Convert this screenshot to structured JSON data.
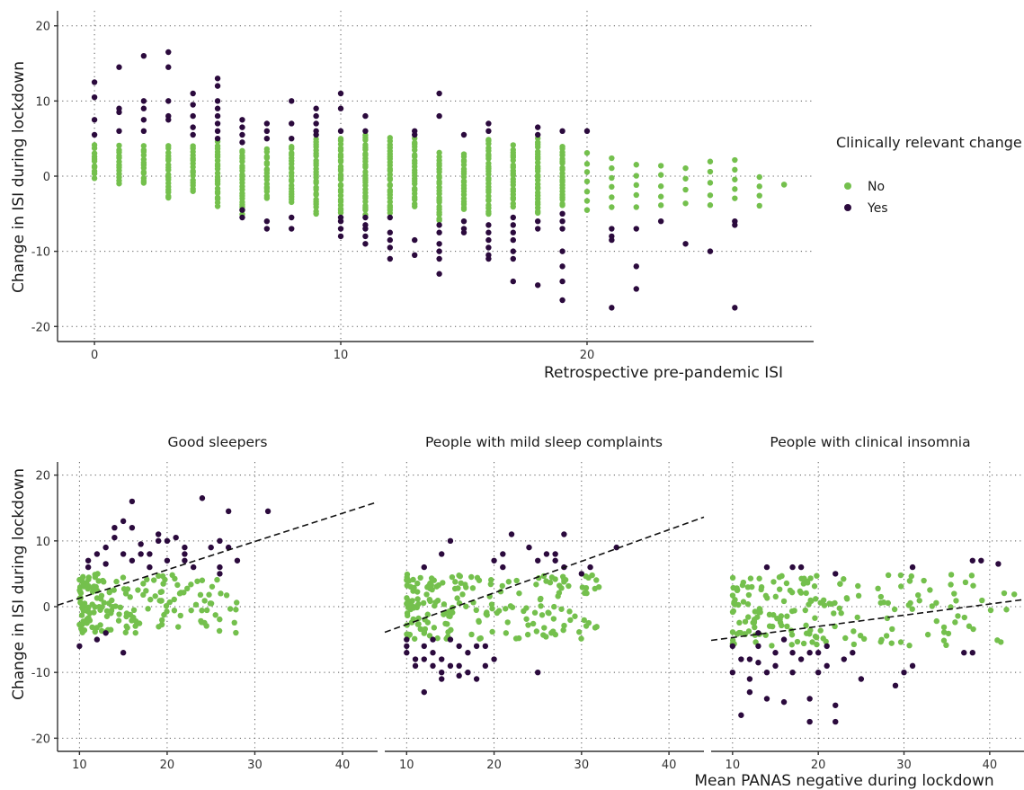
{
  "colors": {
    "no": "#74c04d",
    "yes": "#2b0a3d"
  },
  "legend": {
    "title": "Clinically relevant change",
    "items": [
      {
        "label": "No",
        "key": "no"
      },
      {
        "label": "Yes",
        "key": "yes"
      }
    ]
  },
  "chart_data": [
    {
      "type": "scatter",
      "xlabel": "Retrospective pre-pandemic ISI",
      "ylabel": "Change in ISI during lockdown",
      "xlim": [
        -1.5,
        29.2
      ],
      "ylim": [
        -22,
        22
      ],
      "xticks": [
        0,
        10,
        20
      ],
      "yticks": [
        -20,
        -10,
        0,
        10,
        20
      ],
      "grid": true,
      "columns": [
        {
          "x": 0,
          "no": [
            -0.2,
            4
          ],
          "yes": [
            12.5,
            10.5,
            7.5,
            5.5
          ]
        },
        {
          "x": 1,
          "no": [
            -1,
            4
          ],
          "yes": [
            14.5,
            9,
            8.5,
            6
          ]
        },
        {
          "x": 2,
          "no": [
            -1,
            4
          ],
          "yes": [
            16,
            10,
            9,
            7.5,
            6
          ]
        },
        {
          "x": 3,
          "no": [
            -3,
            4
          ],
          "yes": [
            16.5,
            14.5,
            10,
            8,
            7.5
          ]
        },
        {
          "x": 4,
          "no": [
            -2,
            4
          ],
          "yes": [
            11,
            9.5,
            8,
            6.5,
            5.5
          ]
        },
        {
          "x": 5,
          "no": [
            -4,
            4.5
          ],
          "yes": [
            13,
            12,
            10,
            9,
            8,
            7,
            6,
            5
          ]
        },
        {
          "x": 6,
          "no": [
            -5,
            3.5
          ],
          "yes": [
            7.5,
            6.5,
            5.5,
            4.5,
            -5.5,
            -4.5
          ]
        },
        {
          "x": 7,
          "no": [
            -3,
            3.5
          ],
          "yes": [
            7,
            6,
            5,
            -6,
            -7
          ]
        },
        {
          "x": 8,
          "no": [
            -3.5,
            4
          ],
          "yes": [
            10,
            7,
            5,
            -5.5,
            -7
          ]
        },
        {
          "x": 9,
          "no": [
            -5,
            5
          ],
          "yes": [
            9,
            8,
            7,
            6,
            5.5
          ]
        },
        {
          "x": 10,
          "no": [
            -5,
            5
          ],
          "yes": [
            11,
            9,
            6,
            -5.5,
            -6,
            -7,
            -8
          ]
        },
        {
          "x": 11,
          "no": [
            -5,
            5.5
          ],
          "yes": [
            8,
            6,
            -5.5,
            -6.5,
            -7,
            -8,
            -9
          ]
        },
        {
          "x": 12,
          "no": [
            -5,
            5
          ],
          "yes": [
            -5.5,
            -7.5,
            -8.5,
            -9.5,
            -11
          ]
        },
        {
          "x": 13,
          "no": [
            -4,
            5
          ],
          "yes": [
            6,
            5.5,
            -8.5,
            -10.5
          ]
        },
        {
          "x": 14,
          "no": [
            -6,
            3
          ],
          "yes": [
            11,
            8,
            -6.5,
            -7.5,
            -9,
            -10,
            -11,
            -13
          ]
        },
        {
          "x": 15,
          "no": [
            -4.5,
            3
          ],
          "yes": [
            5.5,
            -6,
            -7,
            -7.5
          ]
        },
        {
          "x": 16,
          "no": [
            -5,
            5
          ],
          "yes": [
            7,
            6,
            -6.5,
            -7.5,
            -8.5,
            -9.5,
            -10.5,
            -11
          ]
        },
        {
          "x": 17,
          "no": [
            -4,
            4
          ],
          "yes": [
            -5.5,
            -6.5,
            -7.5,
            -8.5,
            -10,
            -11,
            -14
          ]
        },
        {
          "x": 18,
          "no": [
            -5,
            5
          ],
          "yes": [
            6.5,
            5.5,
            -6,
            -7,
            -14.5
          ]
        },
        {
          "x": 19,
          "no": [
            -4,
            4
          ],
          "yes": [
            6,
            -5,
            -6,
            -7,
            -10,
            -12,
            -14,
            -16.5
          ]
        },
        {
          "x": 20,
          "no": [
            -4.5,
            3
          ],
          "yes": [
            6
          ]
        },
        {
          "x": 21,
          "no": [
            -4,
            2.5
          ],
          "yes": [
            -7,
            -8,
            -8.5,
            -17.5
          ]
        },
        {
          "x": 22,
          "no": [
            -4,
            1.5
          ],
          "yes": [
            -7,
            -12,
            -15
          ]
        },
        {
          "x": 23,
          "no": [
            -4,
            1.5
          ],
          "yes": [
            -6
          ]
        },
        {
          "x": 24,
          "no": [
            -3.5,
            1.2
          ],
          "yes": [
            -9
          ]
        },
        {
          "x": 25,
          "no": [
            -4,
            2
          ],
          "yes": [
            -10
          ]
        },
        {
          "x": 26,
          "no": [
            -3,
            2
          ],
          "yes": [
            -6,
            -6.5,
            -17.5
          ]
        },
        {
          "x": 27,
          "no": [
            -4,
            0
          ],
          "yes": []
        },
        {
          "x": 28,
          "no": [
            -1,
            -1
          ],
          "yes": []
        }
      ]
    },
    {
      "type": "scatter",
      "title": "Good sleepers",
      "ylabel": "Change in ISI during lockdown",
      "xlim": [
        7.5,
        44
      ],
      "ylim": [
        -22,
        22
      ],
      "xticks": [
        10,
        20,
        30,
        40
      ],
      "yticks": [
        -20,
        -10,
        0,
        10,
        20
      ],
      "grid": true,
      "trend": {
        "intercept": -3.0,
        "slope": 0.43
      },
      "no_cloud": {
        "xmin": 10,
        "xmax": 28,
        "ymin": -4,
        "ymax": 5,
        "n": 170
      },
      "yes_points": [
        [
          10,
          -6
        ],
        [
          11,
          7
        ],
        [
          11,
          6
        ],
        [
          12,
          8
        ],
        [
          13,
          6.5
        ],
        [
          13,
          9
        ],
        [
          14,
          10.5
        ],
        [
          14,
          12
        ],
        [
          15,
          13
        ],
        [
          15,
          8
        ],
        [
          16,
          16
        ],
        [
          16,
          12
        ],
        [
          16,
          7
        ],
        [
          17,
          8
        ],
        [
          17,
          9.5
        ],
        [
          18,
          8
        ],
        [
          19,
          10
        ],
        [
          19,
          11
        ],
        [
          20,
          10
        ],
        [
          20,
          7
        ],
        [
          21,
          10.5
        ],
        [
          22,
          9
        ],
        [
          22,
          7
        ],
        [
          23,
          6
        ],
        [
          24,
          16.5
        ],
        [
          25,
          9
        ],
        [
          26,
          10
        ],
        [
          26,
          6
        ],
        [
          27,
          14.5
        ],
        [
          27,
          9
        ],
        [
          28,
          7
        ],
        [
          31.5,
          14.5
        ],
        [
          15,
          -7
        ],
        [
          12,
          -5
        ],
        [
          13,
          -4
        ],
        [
          18,
          6
        ],
        [
          22,
          8
        ],
        [
          26,
          5
        ]
      ]
    },
    {
      "type": "scatter",
      "title": "People with mild sleep complaints",
      "xlim": [
        7.5,
        44
      ],
      "ylim": [
        -22,
        22
      ],
      "xticks": [
        10,
        20,
        30,
        40
      ],
      "yticks": [
        -20,
        -10,
        0,
        10,
        20
      ],
      "grid": true,
      "trend": {
        "intercept": -7.5,
        "slope": 0.48
      },
      "no_cloud": {
        "xmin": 10,
        "xmax": 32,
        "ymin": -5,
        "ymax": 5,
        "n": 190
      },
      "yes_points": [
        [
          10,
          -5
        ],
        [
          10,
          -6
        ],
        [
          10,
          -7
        ],
        [
          11,
          -8
        ],
        [
          11,
          -9
        ],
        [
          12,
          -13
        ],
        [
          12,
          -6
        ],
        [
          12,
          -8
        ],
        [
          13,
          -9
        ],
        [
          13,
          -7
        ],
        [
          13,
          -5
        ],
        [
          14,
          -11
        ],
        [
          14,
          -10
        ],
        [
          14,
          -8
        ],
        [
          15,
          -9
        ],
        [
          15,
          -5
        ],
        [
          15,
          10
        ],
        [
          16,
          -9
        ],
        [
          16,
          -6
        ],
        [
          16,
          -10.5
        ],
        [
          17,
          -10
        ],
        [
          17,
          -7
        ],
        [
          18,
          -6
        ],
        [
          18,
          -11
        ],
        [
          19,
          -9
        ],
        [
          19,
          -6
        ],
        [
          20,
          -8
        ],
        [
          20,
          7
        ],
        [
          21,
          6
        ],
        [
          22,
          11
        ],
        [
          24,
          9
        ],
        [
          25,
          7
        ],
        [
          25,
          -10
        ],
        [
          26,
          8
        ],
        [
          27,
          8
        ],
        [
          28,
          6
        ],
        [
          28,
          11
        ],
        [
          30,
          5
        ],
        [
          31,
          6
        ],
        [
          34,
          9
        ],
        [
          12,
          6
        ],
        [
          14,
          8
        ],
        [
          21,
          8
        ],
        [
          27,
          7
        ]
      ]
    },
    {
      "type": "scatter",
      "title": "People with clinical insomnia",
      "xlim": [
        7.5,
        44
      ],
      "ylim": [
        -22,
        22
      ],
      "xticks": [
        10,
        20,
        30,
        40
      ],
      "yticks": [
        -20,
        -10,
        0,
        10,
        20
      ],
      "grid": true,
      "trend": {
        "intercept": -6.4,
        "slope": 0.17
      },
      "no_cloud": {
        "xmin": 10,
        "xmax": 43,
        "ymin": -6,
        "ymax": 5,
        "n": 190
      },
      "yes_points": [
        [
          10,
          -6
        ],
        [
          10,
          -10
        ],
        [
          11,
          -8
        ],
        [
          11,
          -16.5
        ],
        [
          12,
          -8
        ],
        [
          12,
          -11
        ],
        [
          13,
          -6
        ],
        [
          13,
          -8.5
        ],
        [
          14,
          -14
        ],
        [
          14,
          -10
        ],
        [
          14,
          6
        ],
        [
          15,
          -7
        ],
        [
          15,
          -9
        ],
        [
          16,
          -14.5
        ],
        [
          17,
          -7
        ],
        [
          17,
          -10
        ],
        [
          17,
          6
        ],
        [
          18,
          -8
        ],
        [
          18,
          6
        ],
        [
          19,
          -14
        ],
        [
          19,
          -17.5
        ],
        [
          20,
          -10
        ],
        [
          20,
          -7
        ],
        [
          21,
          -6
        ],
        [
          22,
          -15
        ],
        [
          22,
          -17.5
        ],
        [
          22,
          5
        ],
        [
          23,
          -8
        ],
        [
          24,
          -7
        ],
        [
          25,
          -11
        ],
        [
          29,
          -12
        ],
        [
          30,
          -10
        ],
        [
          31,
          6
        ],
        [
          31,
          -9
        ],
        [
          37,
          -7
        ],
        [
          38,
          -7
        ],
        [
          38,
          7
        ],
        [
          39,
          7
        ],
        [
          41,
          6.5
        ],
        [
          16,
          -5
        ],
        [
          13,
          -4
        ],
        [
          12,
          -13
        ],
        [
          19,
          -7
        ],
        [
          21,
          -9
        ]
      ]
    }
  ],
  "facet_x_axis_title": "Mean PANAS negative during lockdown"
}
